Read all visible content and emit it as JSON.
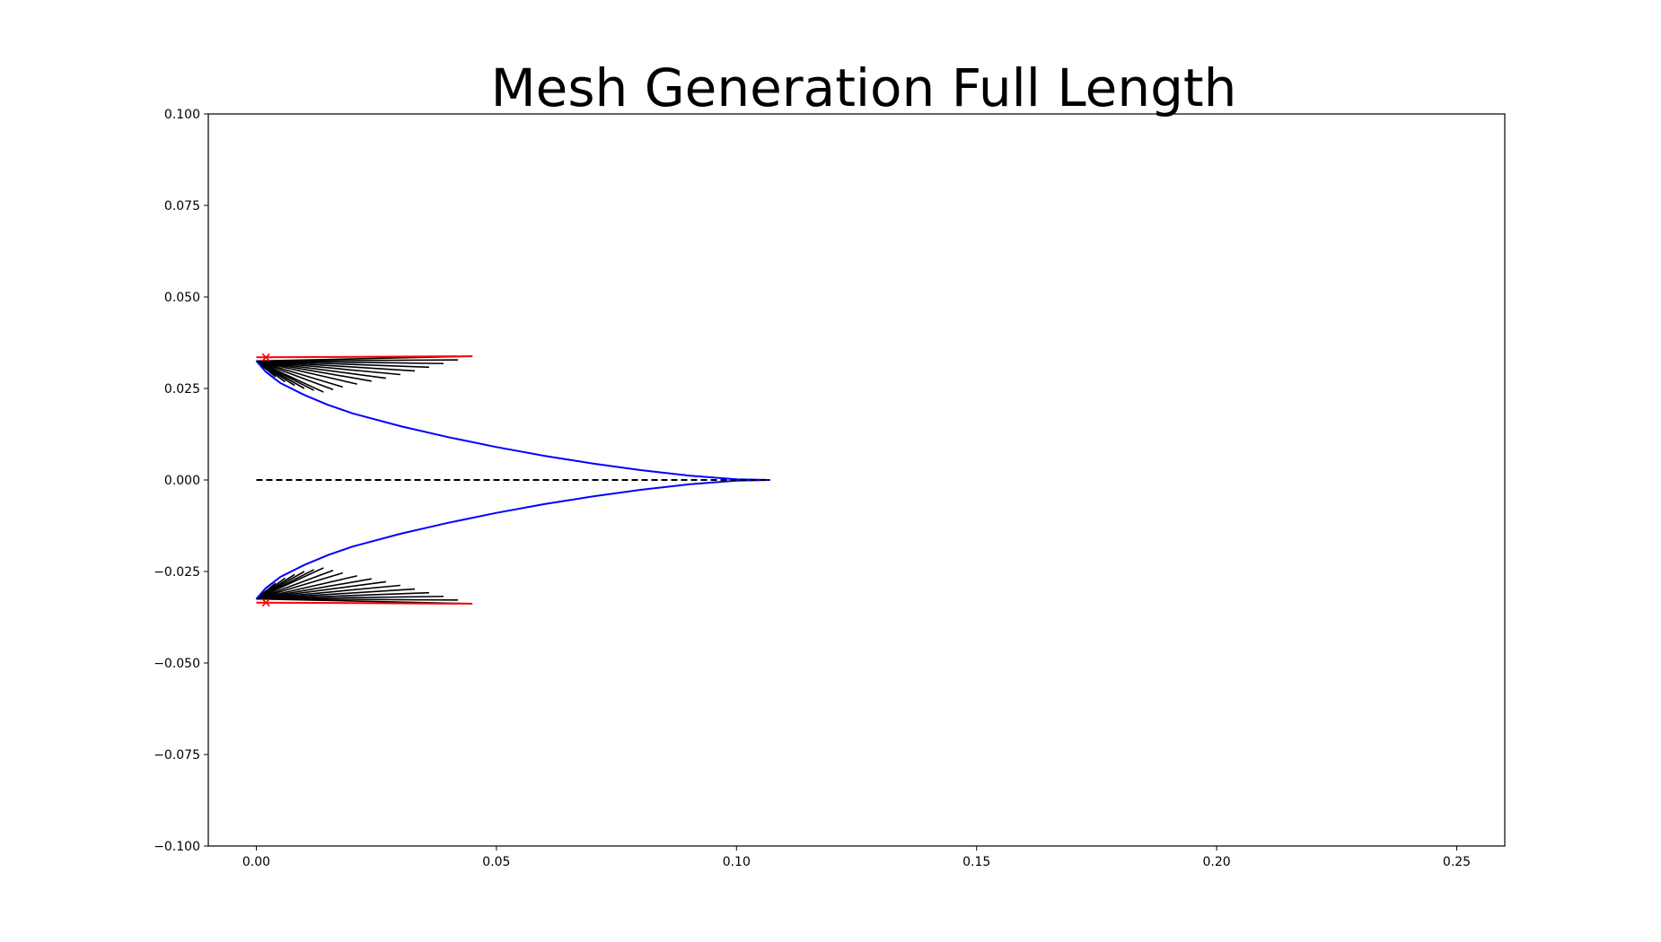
{
  "chart_data": {
    "type": "line",
    "title": "Mesh Generation Full Length",
    "xlabel": "",
    "ylabel": "",
    "xlim": [
      -0.01,
      0.26
    ],
    "ylim": [
      -0.1,
      0.1
    ],
    "x_ticks": [
      0.0,
      0.05,
      0.1,
      0.15,
      0.2,
      0.25
    ],
    "x_tick_labels": [
      "0.00",
      "0.05",
      "0.10",
      "0.15",
      "0.20",
      "0.25"
    ],
    "y_ticks": [
      0.1,
      0.075,
      0.05,
      0.025,
      0.0,
      -0.025,
      -0.05,
      -0.075,
      -0.1
    ],
    "y_tick_labels": [
      "0.100",
      "0.075",
      "0.050",
      "0.025",
      "0.000",
      "−0.025",
      "−0.050",
      "−0.075",
      "−0.100"
    ],
    "grid": false,
    "series": [
      {
        "color": "#0000ff",
        "style": "solid",
        "x": [
          0.0,
          0.002,
          0.005,
          0.01,
          0.015,
          0.02,
          0.03,
          0.04,
          0.05,
          0.06,
          0.07,
          0.08,
          0.09,
          0.1,
          0.107,
          0.1,
          0.09,
          0.08,
          0.07,
          0.06,
          0.05,
          0.04,
          0.03,
          0.02,
          0.015,
          0.01,
          0.005,
          0.002,
          0.0
        ],
        "y": [
          0.0325,
          0.0295,
          0.0265,
          0.0232,
          0.0205,
          0.0182,
          0.0147,
          0.0117,
          0.009,
          0.0066,
          0.0045,
          0.0027,
          0.0012,
          0.0002,
          0.0,
          -0.0002,
          -0.0012,
          -0.0027,
          -0.0045,
          -0.0066,
          -0.009,
          -0.0117,
          -0.0147,
          -0.0182,
          -0.0205,
          -0.0232,
          -0.0265,
          -0.0295,
          -0.0325
        ]
      },
      {
        "color": "#000000",
        "style": "dashed",
        "x": [
          0.0,
          0.107
        ],
        "y": [
          0.0,
          0.0
        ]
      },
      {
        "color": "#ff0000",
        "style": "solid",
        "x": [
          0.0,
          0.045
        ],
        "y": [
          0.0335,
          0.0338
        ]
      },
      {
        "color": "#ff0000",
        "style": "solid",
        "x": [
          0.0,
          0.045
        ],
        "y": [
          -0.0335,
          -0.0338
        ]
      }
    ],
    "mesh_lines": {
      "color": "#000000",
      "root_x": 0.0,
      "upper_root_y": 0.0325,
      "lower_root_y": -0.0325,
      "upper_tips": [
        [
          0.045,
          0.0338
        ],
        [
          0.042,
          0.0328
        ],
        [
          0.039,
          0.0318
        ],
        [
          0.036,
          0.0308
        ],
        [
          0.033,
          0.0298
        ],
        [
          0.03,
          0.0288
        ],
        [
          0.027,
          0.0278
        ],
        [
          0.024,
          0.027
        ],
        [
          0.021,
          0.0262
        ],
        [
          0.018,
          0.0254
        ],
        [
          0.016,
          0.0247
        ],
        [
          0.014,
          0.024
        ],
        [
          0.012,
          0.0245
        ],
        [
          0.01,
          0.025
        ],
        [
          0.008,
          0.0258
        ],
        [
          0.006,
          0.0268
        ],
        [
          0.004,
          0.0282
        ],
        [
          0.002,
          0.0305
        ]
      ],
      "lower_tips": [
        [
          0.045,
          -0.0338
        ],
        [
          0.042,
          -0.0328
        ],
        [
          0.039,
          -0.0318
        ],
        [
          0.036,
          -0.0308
        ],
        [
          0.033,
          -0.0298
        ],
        [
          0.03,
          -0.0288
        ],
        [
          0.027,
          -0.0278
        ],
        [
          0.024,
          -0.027
        ],
        [
          0.021,
          -0.0262
        ],
        [
          0.018,
          -0.0254
        ],
        [
          0.016,
          -0.0247
        ],
        [
          0.014,
          -0.024
        ],
        [
          0.012,
          -0.0245
        ],
        [
          0.01,
          -0.025
        ],
        [
          0.008,
          -0.0258
        ],
        [
          0.006,
          -0.0268
        ],
        [
          0.004,
          -0.0282
        ],
        [
          0.002,
          -0.0305
        ]
      ]
    },
    "markers": {
      "symbol": "x",
      "color": "#ff0000",
      "points": [
        [
          0.002,
          0.0335
        ],
        [
          0.002,
          -0.0335
        ]
      ]
    }
  }
}
